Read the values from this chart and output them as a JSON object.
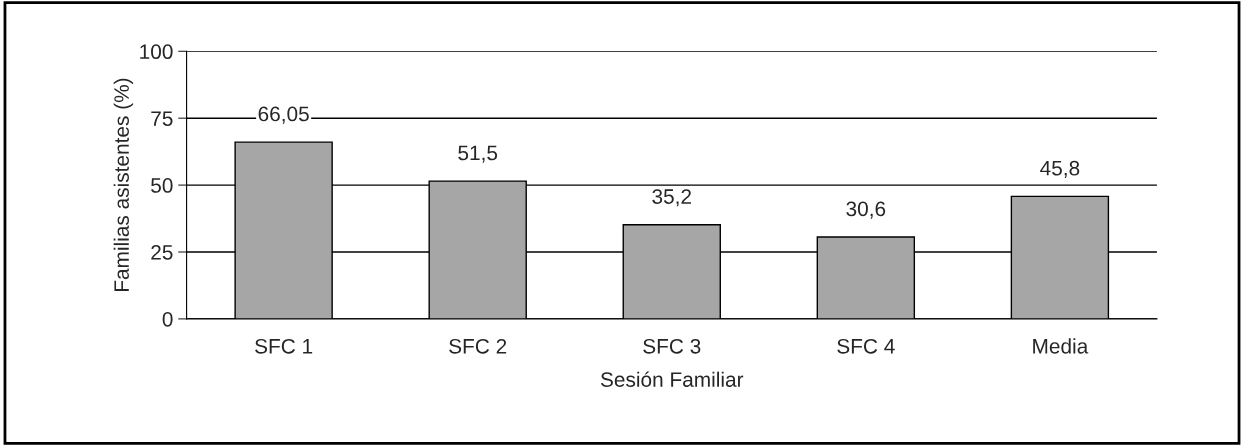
{
  "chart_data": {
    "type": "bar",
    "xlabel": "Sesión Familiar",
    "ylabel": "Familias asistentes (%)",
    "categories": [
      "SFC 1",
      "SFC 2",
      "SFC 3",
      "SFC 4",
      "Media"
    ],
    "values": [
      66.05,
      51.5,
      35.2,
      30.6,
      45.8
    ],
    "value_labels": [
      "66,05",
      "51,5",
      "35,2",
      "30,6",
      "45,8"
    ],
    "color": "#a6a6a6",
    "ylim": [
      0,
      100
    ],
    "yticks": [
      0,
      25,
      50,
      75,
      100
    ],
    "grid": "y"
  }
}
